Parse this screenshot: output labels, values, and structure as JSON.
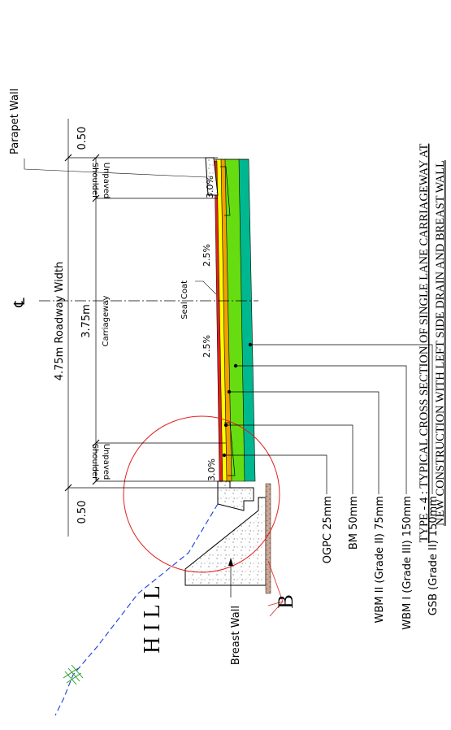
{
  "labels": {
    "parapet_wall": "Parapet Wall",
    "dim_left": "0.50",
    "dim_right": "0.50",
    "roadway_width": "4.75m  Roadway  Width",
    "carriageway_width": "3.75m",
    "carriageway": "Carriageway",
    "unpaved_shoulder_top_a": "Unpaved",
    "unpaved_shoulder_top_b": "Shoulder",
    "unpaved_shoulder_bottom_a": "Unpaved",
    "unpaved_shoulder_bottom_b": "Shoulder",
    "seal_coat": "Seal Coat",
    "centerline": "℄",
    "slope_top": "3.0%",
    "slope_mid_top": "2.5%",
    "slope_mid_bottom": "2.5%",
    "slope_bottom": "3.0%",
    "breast_wall": "Breast Wall",
    "detail_mark": "B",
    "hill": "H I L L"
  },
  "layers": [
    {
      "name": "OGPC 25mm",
      "color": "#e02020"
    },
    {
      "name": "BM 50mm",
      "color": "#ffff00"
    },
    {
      "name": "WBM II (Grade II) 75mm",
      "color": "#f0a000"
    },
    {
      "name": "WBM I (Grade III) 150mm",
      "color": "#66dd11"
    },
    {
      "name": "GSB (Grade II) 150mm",
      "color": "#00b890"
    }
  ],
  "title": {
    "line1": "TYPE - 4 : TYPICAL CROSS SECTION OF SINGLE LANE CARRIAGEWAY AT",
    "line2": "NEW CONSTRUCTION WITH LEFT SIDE  DRAIN AND BREAST WALL"
  }
}
